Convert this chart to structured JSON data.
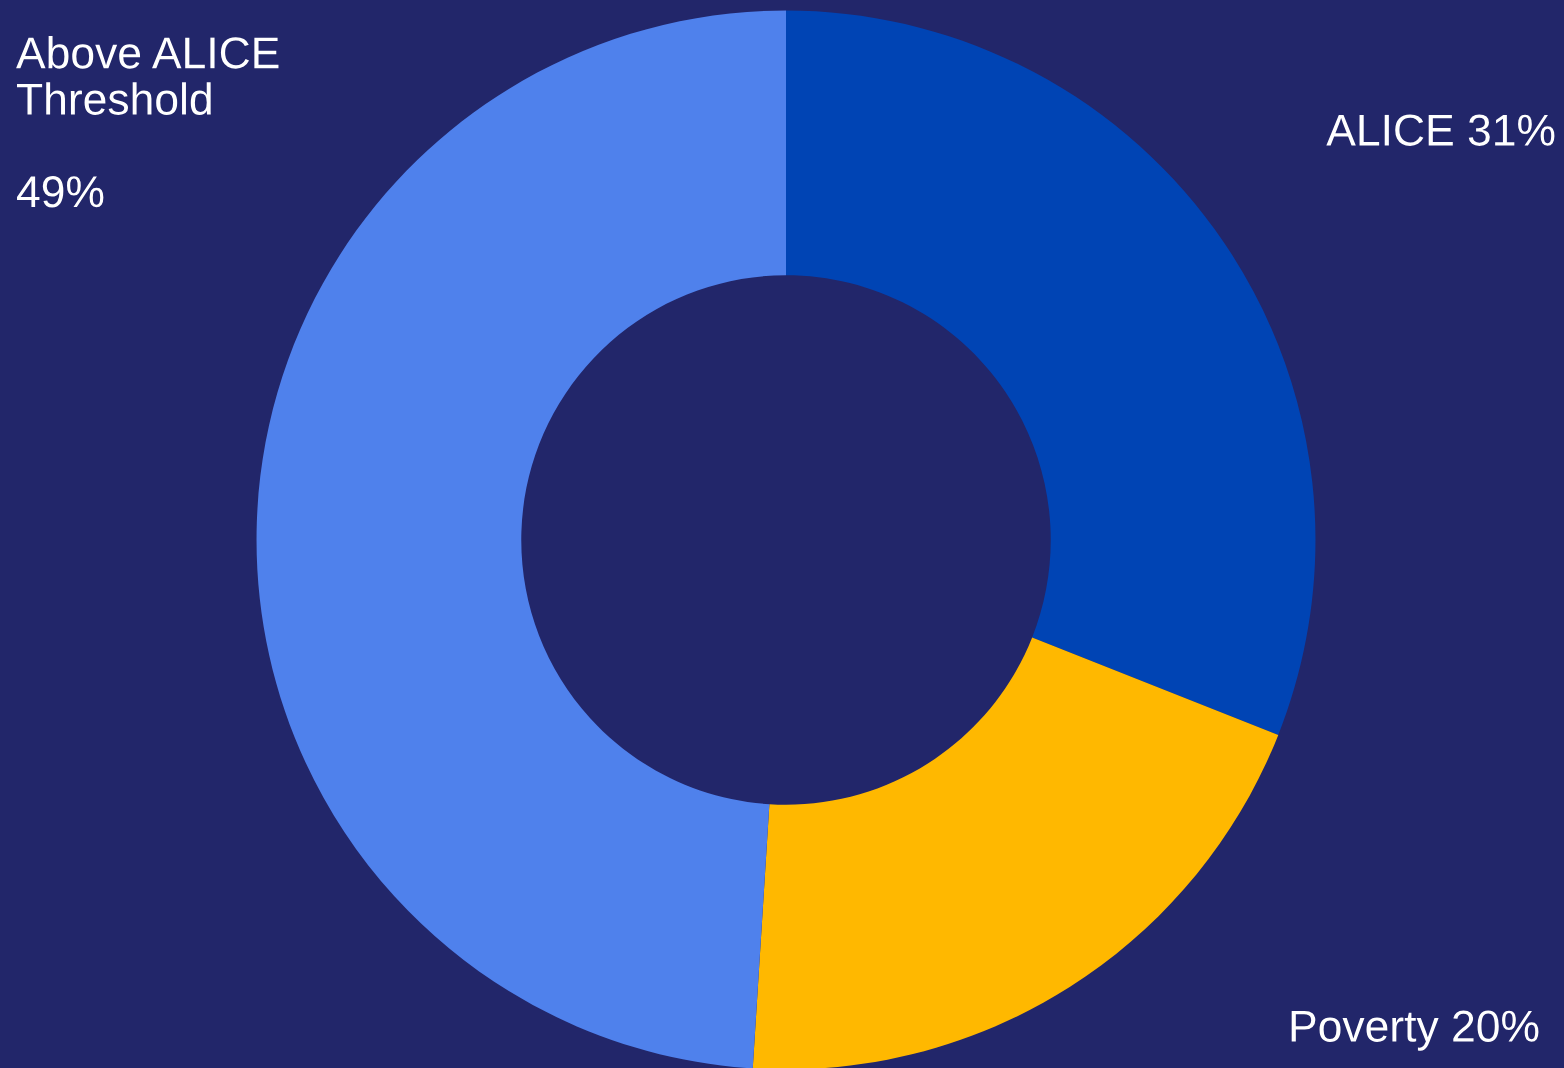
{
  "chart_data": {
    "type": "donut",
    "categories": [
      "ALICE",
      "Poverty",
      "Above ALICE\nThreshold"
    ],
    "values": [
      31,
      20,
      49
    ],
    "value_labels": [
      "31%",
      "20%",
      "49%"
    ],
    "colors": [
      "#0044b4",
      "#ffb800",
      "#4f81ec"
    ],
    "legend": false
  }
}
